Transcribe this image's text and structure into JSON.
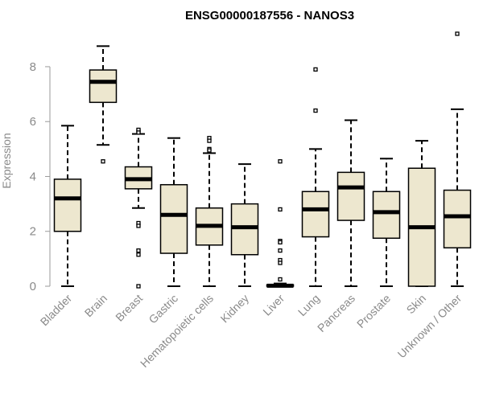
{
  "chart_data": {
    "type": "boxplot",
    "title": "ENSG00000187556 - NANOS3",
    "ylabel": "Expression",
    "xlabel": "",
    "ylim": [
      0,
      9.2
    ],
    "yticks": [
      0,
      2,
      4,
      6,
      8
    ],
    "grid": false,
    "legend": "none",
    "box_color": "#ede7cf",
    "categories": [
      "Bladder",
      "Brain",
      "Breast",
      "Gastric",
      "Hematopoietic cells",
      "Kidney",
      "Liver",
      "Lung",
      "Pancreas",
      "Prostate",
      "Skin",
      "Unknown / Other"
    ],
    "boxes": [
      {
        "min": 0.0,
        "q1": 2.0,
        "median": 3.2,
        "q3": 3.9,
        "max": 5.85,
        "outliers": []
      },
      {
        "min": 5.15,
        "q1": 6.7,
        "median": 7.45,
        "q3": 7.88,
        "max": 8.75,
        "outliers": [
          4.55
        ]
      },
      {
        "min": 2.85,
        "q1": 3.55,
        "median": 3.9,
        "q3": 4.35,
        "max": 5.55,
        "outliers": [
          5.65,
          5.7,
          5.6,
          2.3,
          2.2,
          1.3,
          1.15,
          0.0
        ]
      },
      {
        "min": 0.0,
        "q1": 1.2,
        "median": 2.6,
        "q3": 3.7,
        "max": 5.4,
        "outliers": []
      },
      {
        "min": 0.0,
        "q1": 1.5,
        "median": 2.2,
        "q3": 2.85,
        "max": 4.85,
        "outliers": [
          5.4,
          5.3,
          5.0,
          4.95
        ]
      },
      {
        "min": 0.0,
        "q1": 1.15,
        "median": 2.15,
        "q3": 3.0,
        "max": 4.45,
        "outliers": []
      },
      {
        "min": 0.0,
        "q1": 0.0,
        "median": 0.02,
        "q3": 0.05,
        "max": 0.1,
        "outliers": [
          4.55,
          2.8,
          1.65,
          1.6,
          1.3,
          0.95,
          0.85,
          0.25
        ]
      },
      {
        "min": 0.0,
        "q1": 1.8,
        "median": 2.8,
        "q3": 3.45,
        "max": 5.0,
        "outliers": [
          7.9,
          6.4
        ]
      },
      {
        "min": 0.0,
        "q1": 2.4,
        "median": 3.6,
        "q3": 4.15,
        "max": 6.05,
        "outliers": []
      },
      {
        "min": 0.0,
        "q1": 1.75,
        "median": 2.7,
        "q3": 3.45,
        "max": 4.65,
        "outliers": []
      },
      {
        "min": 0.0,
        "q1": 0.0,
        "median": 2.15,
        "q3": 4.3,
        "max": 5.3,
        "outliers": []
      },
      {
        "min": 0.0,
        "q1": 1.4,
        "median": 2.55,
        "q3": 3.5,
        "max": 6.45,
        "outliers": [
          9.2
        ]
      }
    ]
  }
}
